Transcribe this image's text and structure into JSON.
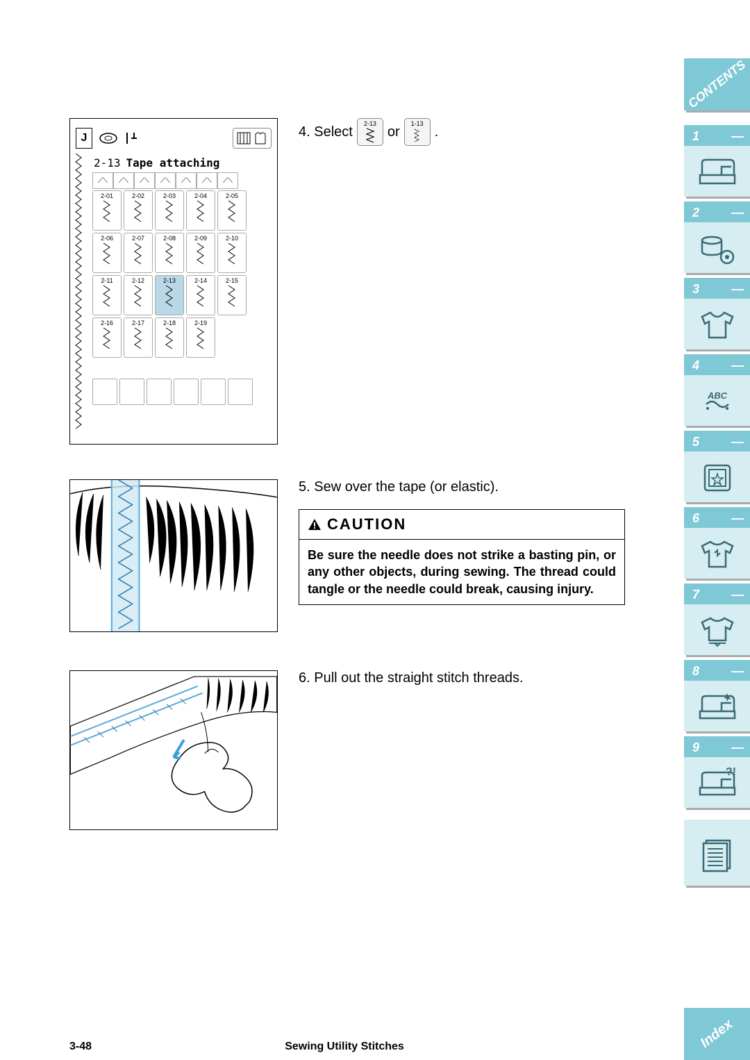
{
  "sidebar": {
    "contents_label": "CONTENTS",
    "index_label": "Index",
    "items": [
      {
        "num": "1",
        "dash": "—",
        "icon": "machine"
      },
      {
        "num": "2",
        "dash": "—",
        "icon": "thread"
      },
      {
        "num": "3",
        "dash": "—",
        "icon": "shirt"
      },
      {
        "num": "4",
        "dash": "—",
        "icon": "abc"
      },
      {
        "num": "5",
        "dash": "—",
        "icon": "star-frame"
      },
      {
        "num": "6",
        "dash": "—",
        "icon": "shirt-tear"
      },
      {
        "num": "7",
        "dash": "—",
        "icon": "shirt-arrow"
      },
      {
        "num": "8",
        "dash": "—",
        "icon": "machine-sparkle"
      },
      {
        "num": "9",
        "dash": "—",
        "icon": "machine-q"
      }
    ],
    "book_icon": "book"
  },
  "steps": {
    "s4_prefix": "4. Select",
    "s4_or": "or",
    "s4_period": ".",
    "s4_opt1": "2-13",
    "s4_opt2": "1-13",
    "s5": "5. Sew over the tape (or elastic).",
    "s6": "6. Pull out the straight stitch threads."
  },
  "caution": {
    "title": "CAUTION",
    "body": "Be sure the needle does not strike a basting pin, or any other objects, during sewing. The thread could tangle or the needle could break, causing injury."
  },
  "footer": {
    "page": "3-48",
    "title": "Sewing Utility Stitches"
  },
  "lcd": {
    "letter": "J",
    "title_num": "2-13",
    "title_text": "Tape attaching",
    "cells": [
      [
        "2-01",
        "2-02",
        "2-03",
        "2-04",
        "2-05"
      ],
      [
        "2-06",
        "2-07",
        "2-08",
        "2-09",
        "2-10"
      ],
      [
        "2-11",
        "2-12",
        "2-13",
        "2-14",
        "2-15"
      ],
      [
        "2-16",
        "2-17",
        "2-18",
        "2-19"
      ]
    ],
    "selected": "2-13"
  },
  "colors": {
    "tab_bg": "#7fc8d6",
    "tab_light": "#d6edf1",
    "shadow": "#aaaaaa"
  }
}
